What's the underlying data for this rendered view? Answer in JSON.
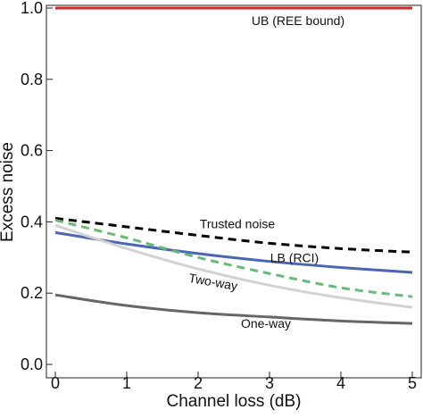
{
  "chart_data": {
    "type": "line",
    "title": "",
    "xlabel": "Channel loss (dB)",
    "ylabel": "Excess noise",
    "xlim": [
      0,
      5
    ],
    "ylim": [
      0,
      1.0
    ],
    "x_ticks": [
      "0",
      "1",
      "2",
      "3",
      "4",
      "5"
    ],
    "y_ticks": [
      "0.0",
      "0.2",
      "0.4",
      "0.6",
      "0.8",
      "1.0"
    ],
    "grid": false,
    "series": [
      {
        "name": "UB (REE bound)",
        "color": "#d62728",
        "dash": "solid",
        "x": [
          0,
          1,
          2,
          3,
          4,
          5
        ],
        "values": [
          1.0,
          1.0,
          1.0,
          1.0,
          1.0,
          1.0
        ]
      },
      {
        "name": "Trusted noise",
        "color": "#000000",
        "dash": "dashed",
        "x": [
          0,
          1,
          2,
          3,
          4,
          5
        ],
        "values": [
          0.41,
          0.386,
          0.362,
          0.34,
          0.325,
          0.315
        ]
      },
      {
        "name": "LB (RCI)",
        "color": "#4a66b2",
        "dash": "solid",
        "x": [
          0,
          1,
          2,
          3,
          4,
          5
        ],
        "values": [
          0.37,
          0.338,
          0.311,
          0.289,
          0.272,
          0.258
        ]
      },
      {
        "name": "",
        "color": "#66bb77",
        "dash": "dashed",
        "x": [
          0,
          1,
          2,
          3,
          4,
          5
        ],
        "values": [
          0.405,
          0.355,
          0.3,
          0.255,
          0.215,
          0.19
        ]
      },
      {
        "name": "Two-way",
        "color": "#d2d2d2",
        "dash": "solid",
        "x": [
          0,
          1,
          2,
          3,
          4,
          5
        ],
        "values": [
          0.39,
          0.325,
          0.268,
          0.222,
          0.187,
          0.16
        ]
      },
      {
        "name": "One-way",
        "color": "#666666",
        "dash": "solid",
        "x": [
          0,
          1,
          2,
          3,
          4,
          5
        ],
        "values": [
          0.195,
          0.165,
          0.145,
          0.133,
          0.122,
          0.115
        ]
      }
    ],
    "annotations": [
      {
        "text": "UB (REE bound)",
        "x": 3.4,
        "y": 0.965
      },
      {
        "text": "Trusted noise",
        "x": 2.55,
        "y": 0.395
      },
      {
        "text": "LB (RCI)",
        "x": 3.35,
        "y": 0.3
      },
      {
        "text": "Two-way",
        "x": 2.2,
        "y": 0.232
      },
      {
        "text": "One-way",
        "x": 2.95,
        "y": 0.115
      }
    ]
  }
}
